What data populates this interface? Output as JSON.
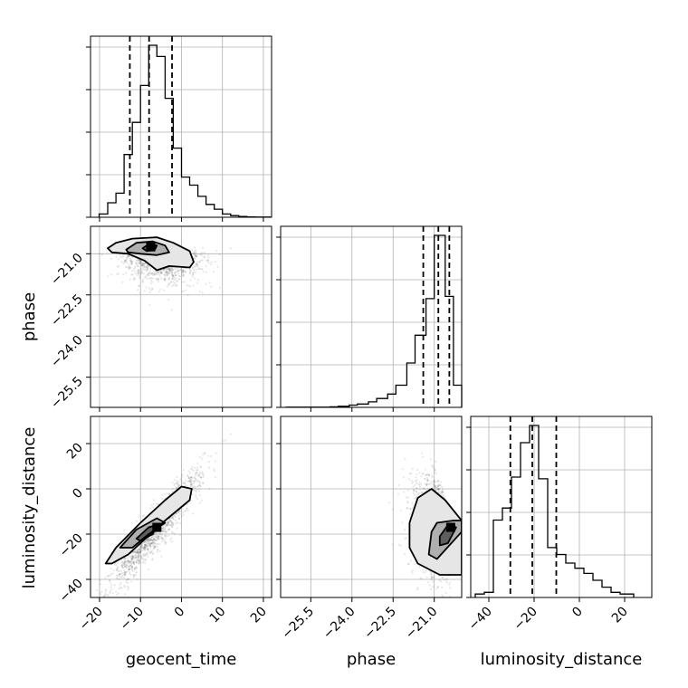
{
  "chart_data": {
    "type": "corner",
    "parameters": [
      "geocent_time",
      "phase",
      "luminosity_distance"
    ],
    "axis_labels": {
      "bottom": [
        "geocent_time",
        "phase",
        "luminosity_distance"
      ],
      "left": [
        "phase",
        "luminosity_distance"
      ]
    },
    "ticks": {
      "geocent_time": [
        "−20",
        "−10",
        "0",
        "10",
        "20"
      ],
      "phase": [
        "−25.5",
        "−24.0",
        "−22.5",
        "−21.0"
      ],
      "luminosity_distance": [
        "−40",
        "−20",
        "0",
        "20"
      ]
    },
    "tick_values": {
      "geocent_time": [
        -20,
        -10,
        0,
        10,
        20
      ],
      "phase": [
        -25.5,
        -24.0,
        -22.5,
        -21.0
      ],
      "luminosity_distance": [
        -40,
        -20,
        0,
        20
      ]
    },
    "ranges": {
      "geocent_time": [
        -22.2,
        22.0
      ],
      "phase": [
        -26.6,
        -20.0
      ],
      "luminosity_distance": [
        -48.0,
        32.0
      ]
    },
    "grid": true,
    "marginals": {
      "geocent_time": {
        "bin_edges": [
          -20.1,
          -18.0,
          -16.0,
          -14.0,
          -12.0,
          -10.0,
          -8.0,
          -6.0,
          -4.0,
          -2.0,
          0.0,
          2.0,
          4.0,
          6.0,
          8.0,
          10.0,
          12.0,
          14.0,
          16.0,
          18.0,
          21.7
        ],
        "heights": [
          2,
          9,
          15,
          39,
          59,
          82,
          107,
          100,
          74,
          43,
          25,
          20,
          13,
          8,
          5,
          2,
          1,
          0.5,
          0.2,
          0.1
        ],
        "quantiles": [
          -12.6,
          -7.9,
          -2.3
        ]
      },
      "phase": {
        "bin_edges": [
          -26.4,
          -24.8,
          -24.5,
          -24.1,
          -23.8,
          -23.4,
          -23.1,
          -22.7,
          -22.4,
          -22.0,
          -21.7,
          -21.3,
          -21.0,
          -20.6,
          -20.3,
          -20.0
        ],
        "heights": [
          0.2,
          0.5,
          1,
          2,
          3,
          5,
          8,
          12,
          20,
          40,
          65,
          98,
          155,
          100,
          20
        ],
        "quantiles": [
          -21.4,
          -20.85,
          -20.45
        ]
      },
      "luminosity_distance": {
        "bin_edges": [
          -46.0,
          -42.0,
          -38.0,
          -34.0,
          -30.0,
          -26.0,
          -22.0,
          -18.0,
          -14.0,
          -10.0,
          -6.0,
          -2.0,
          2.0,
          6.0,
          10.0,
          14.0,
          18.0,
          24.0
        ],
        "heights": [
          2,
          3,
          45,
          52,
          70,
          90,
          100,
          69,
          29,
          25,
          20,
          17,
          14,
          10,
          6,
          3,
          2
        ],
        "quantiles": [
          -30.5,
          -20.8,
          -10.2
        ]
      }
    },
    "joints": [
      {
        "x": "geocent_time",
        "y": "phase",
        "peak": [
          -7.5,
          -20.75
        ],
        "contours": [
          [
            [
              -18,
              -20.8
            ],
            [
              -16,
              -20.6
            ],
            [
              -12,
              -20.45
            ],
            [
              -6,
              -20.4
            ],
            [
              -2,
              -20.6
            ],
            [
              2,
              -20.9
            ],
            [
              3,
              -21.3
            ],
            [
              2,
              -21.5
            ],
            [
              -3,
              -21.45
            ],
            [
              -6,
              -21.6
            ],
            [
              -9,
              -21.25
            ],
            [
              -13,
              -21.0
            ],
            [
              -17,
              -20.95
            ]
          ],
          [
            [
              -13.5,
              -20.85
            ],
            [
              -11,
              -20.6
            ],
            [
              -7,
              -20.55
            ],
            [
              -4,
              -20.7
            ],
            [
              -3,
              -20.95
            ],
            [
              -6,
              -21.05
            ],
            [
              -10,
              -21.0
            ],
            [
              -13,
              -20.95
            ]
          ],
          [
            [
              -9.5,
              -20.8
            ],
            [
              -8,
              -20.65
            ],
            [
              -6,
              -20.7
            ],
            [
              -6.5,
              -20.85
            ],
            [
              -8.5,
              -20.9
            ]
          ]
        ]
      },
      {
        "x": "geocent_time",
        "y": "luminosity_distance",
        "peak": [
          -6,
          -17
        ],
        "contours": [
          [
            [
              -18.5,
              -33
            ],
            [
              -16,
              -26
            ],
            [
              -10,
              -15
            ],
            [
              -4,
              -5
            ],
            [
              0,
              1
            ],
            [
              2.5,
              0
            ],
            [
              2,
              -5
            ],
            [
              -4,
              -14
            ],
            [
              -10,
              -24
            ],
            [
              -13,
              -29
            ],
            [
              -17,
              -33
            ]
          ],
          [
            [
              -15,
              -26
            ],
            [
              -11,
              -18
            ],
            [
              -6,
              -13
            ],
            [
              -4,
              -15
            ],
            [
              -8,
              -20
            ],
            [
              -12,
              -26
            ]
          ],
          [
            [
              -11,
              -22
            ],
            [
              -8,
              -17
            ],
            [
              -6,
              -16
            ],
            [
              -7,
              -20
            ],
            [
              -10,
              -23
            ]
          ]
        ]
      },
      {
        "x": "phase",
        "y": "luminosity_distance",
        "peak": [
          -20.4,
          -17
        ],
        "contours": [
          [
            [
              -21.9,
              -15
            ],
            [
              -21.6,
              -4
            ],
            [
              -21.1,
              0
            ],
            [
              -20.6,
              -5
            ],
            [
              -20.0,
              -14
            ],
            [
              -20.0,
              -38
            ],
            [
              -20.8,
              -38
            ],
            [
              -21.6,
              -33
            ],
            [
              -21.9,
              -26
            ]
          ],
          [
            [
              -21.1,
              -19
            ],
            [
              -20.9,
              -15
            ],
            [
              -20.3,
              -14
            ],
            [
              -20.0,
              -14
            ],
            [
              -20.0,
              -19
            ],
            [
              -20.9,
              -31
            ],
            [
              -21.2,
              -29
            ]
          ],
          [
            [
              -20.8,
              -21
            ],
            [
              -20.5,
              -16
            ],
            [
              -20.2,
              -17
            ],
            [
              -20.5,
              -24
            ],
            [
              -20.8,
              -25
            ]
          ]
        ]
      }
    ]
  },
  "colors": {
    "ink": "#000000",
    "grid": "#b0b0b0",
    "points": "#000000",
    "fill_levels": [
      "#ffffff",
      "#e6e6e6",
      "#a9a9a9",
      "#555555",
      "#000000"
    ]
  }
}
